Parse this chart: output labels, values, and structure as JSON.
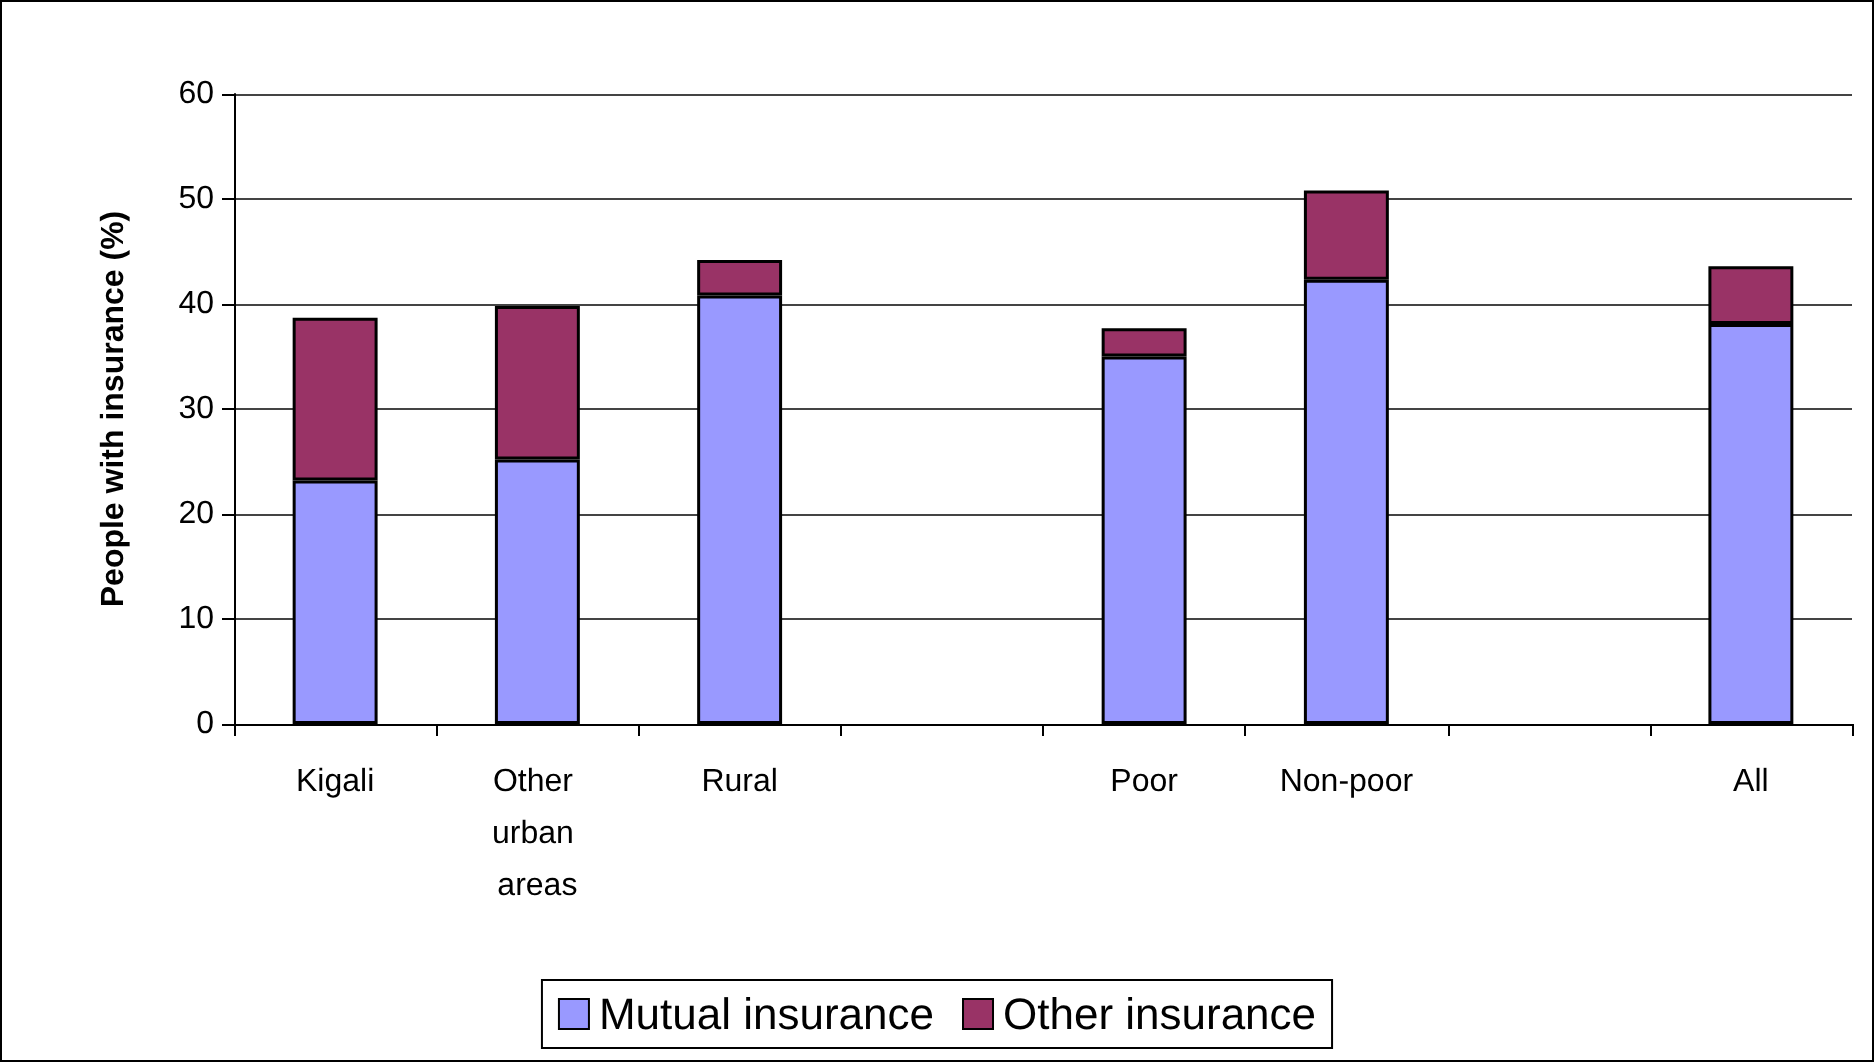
{
  "chart_data": {
    "type": "bar",
    "ylabel": "People with insurance (%)",
    "categories": [
      "Kigali",
      "Other urban areas",
      "Rural",
      null,
      "Poor",
      "Non-poor",
      null,
      "All"
    ],
    "series": [
      {
        "name": "Mutual insurance",
        "color": "#9999ff",
        "values": [
          23.2,
          25.2,
          40.8,
          null,
          35.0,
          42.3,
          null,
          38.1
        ]
      },
      {
        "name": "Other insurance",
        "color": "#993366",
        "values": [
          15.5,
          14.6,
          3.4,
          null,
          2.7,
          8.5,
          null,
          5.5
        ]
      }
    ],
    "stacked": true,
    "ylim": [
      0,
      60
    ],
    "yticks": [
      0,
      10,
      20,
      30,
      40,
      50,
      60
    ],
    "grid": "y",
    "legend": "bottom"
  }
}
